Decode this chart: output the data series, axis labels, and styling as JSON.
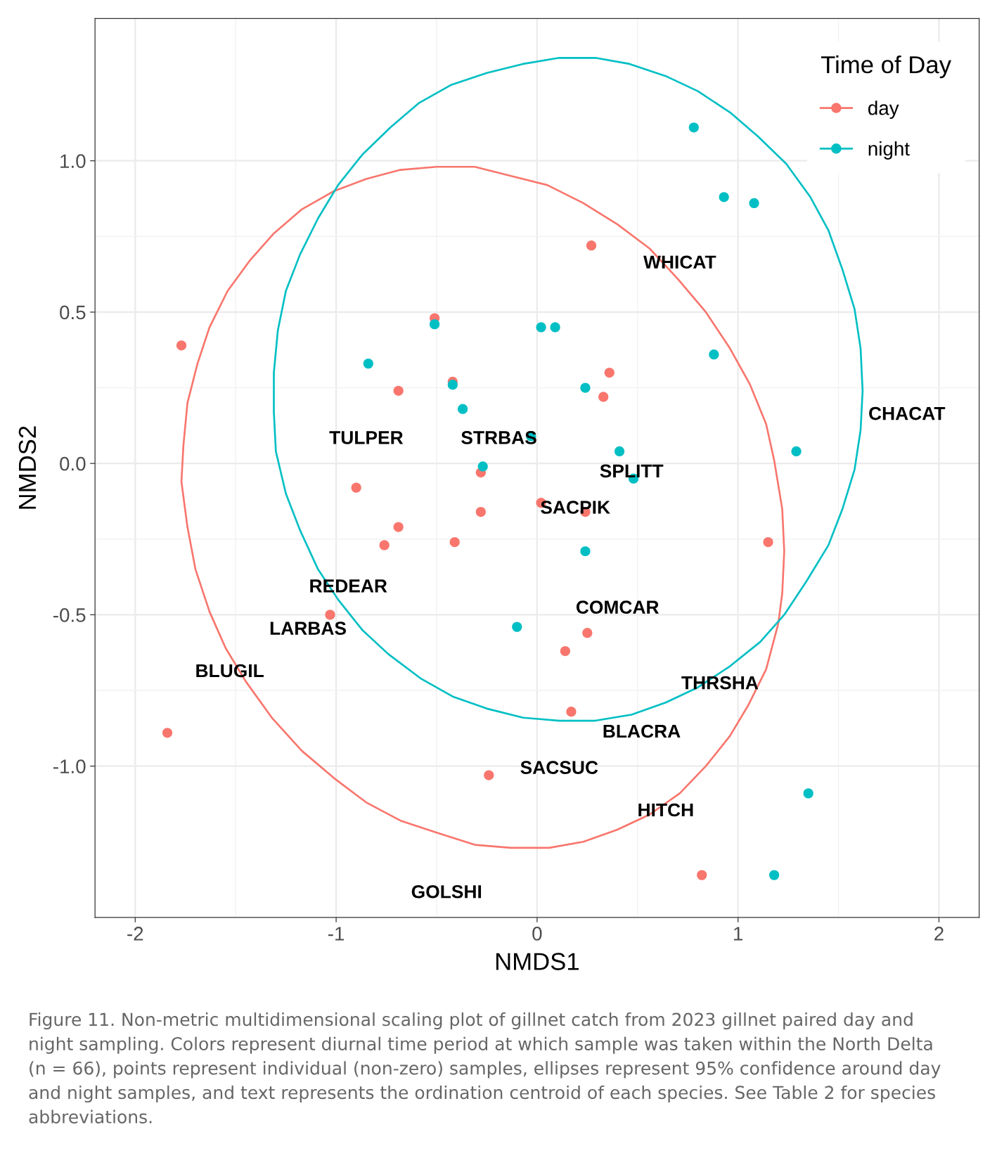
{
  "chart_data": {
    "type": "scatter",
    "xlabel": "NMDS1",
    "ylabel": "NMDS2",
    "legend_title": "Time of Day",
    "legend": "top right",
    "grid": true,
    "line_style": "solid",
    "xlim": [
      -2.2,
      2.2
    ],
    "ylim": [
      -1.5,
      1.47
    ],
    "xticks": [
      -2,
      -1,
      0,
      1,
      2
    ],
    "yticks": [
      {
        "value": -1,
        "label": "-1.0"
      },
      -0.5,
      {
        "value": 0,
        "label": "0.0"
      },
      0.5,
      {
        "value": 1,
        "label": "1.0"
      }
    ],
    "series": [
      {
        "name": "day",
        "marker": "circle",
        "color": "#f8766d",
        "x": [
          -1.77,
          -0.51,
          0.27,
          -0.69,
          -0.42,
          0.36,
          0.33,
          -0.9,
          -0.28,
          -0.28,
          0.02,
          0.24,
          -0.69,
          -0.76,
          -0.41,
          1.15,
          -1.03,
          0.25,
          0.14,
          0.17,
          -1.84,
          -0.24,
          0.82
        ],
        "values": [
          0.39,
          0.48,
          0.72,
          0.24,
          0.27,
          0.3,
          0.22,
          -0.08,
          -0.03,
          -0.16,
          -0.13,
          -0.16,
          -0.21,
          -0.27,
          -0.26,
          -0.26,
          -0.5,
          -0.56,
          -0.62,
          -0.82,
          -0.89,
          -1.03,
          -1.36
        ]
      },
      {
        "name": "night",
        "marker": "circle",
        "color": "#00bfc4",
        "x": [
          0.78,
          0.93,
          1.08,
          -0.51,
          0.02,
          0.09,
          -0.84,
          0.88,
          -0.42,
          0.24,
          -0.37,
          -0.03,
          -0.27,
          0.41,
          1.29,
          0.48,
          0.24,
          -0.1,
          1.35,
          1.18
        ],
        "values": [
          1.11,
          0.88,
          0.86,
          0.46,
          0.45,
          0.45,
          0.33,
          0.36,
          0.26,
          0.25,
          0.18,
          0.09,
          -0.01,
          0.04,
          0.04,
          -0.05,
          -0.29,
          -0.54,
          -1.09,
          -1.36
        ]
      }
    ],
    "annotations": [
      "WHICAT",
      "CHACAT",
      "TULPER",
      "STRBAS",
      "SPLITT",
      "SACPIK",
      "REDEAR",
      "COMCAR",
      "LARBAS",
      "BLUGIL",
      "THRSHA",
      "BLACRA",
      "SACSUC",
      "HITCH",
      "GOLSHI",
      "Figure 11. Non-metric multidimensional scaling plot of gillnet catch from 2023 gillnet paired day and night sampling. Colors represent diurnal time period at which sample was taken within the North Delta (n = 66), points represent individual (non-zero) samples, ellipses represent 95% confidence around day and night samples, and text represents the ordination centroid of each species. See Table 2 for species abbreviations."
    ]
  }
}
